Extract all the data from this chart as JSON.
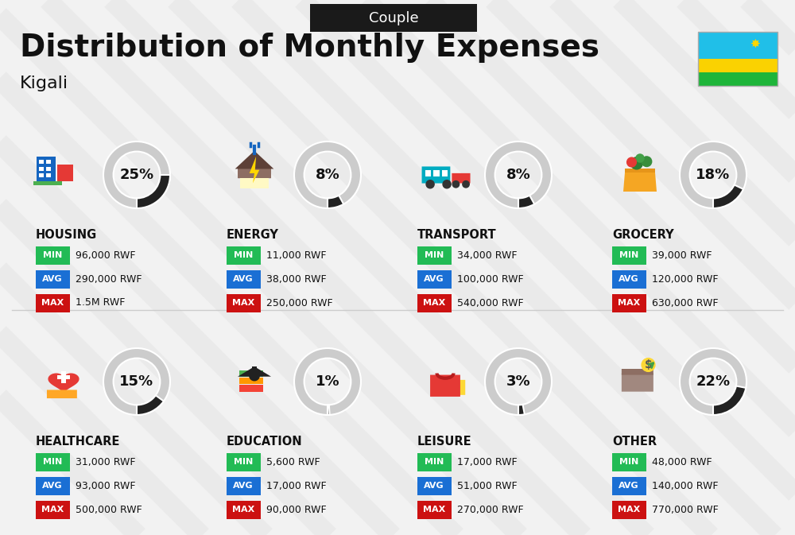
{
  "title": "Distribution of Monthly Expenses",
  "subtitle": "Couple",
  "city": "Kigali",
  "bg_color": "#f2f2f2",
  "header_bg": "#1a1a1a",
  "header_text_color": "#ffffff",
  "title_color": "#111111",
  "city_color": "#111111",
  "categories": [
    {
      "name": "HOUSING",
      "pct": 25,
      "min": "96,000 RWF",
      "avg": "290,000 RWF",
      "max": "1.5M RWF",
      "row": 0,
      "col": 0
    },
    {
      "name": "ENERGY",
      "pct": 8,
      "min": "11,000 RWF",
      "avg": "38,000 RWF",
      "max": "250,000 RWF",
      "row": 0,
      "col": 1
    },
    {
      "name": "TRANSPORT",
      "pct": 8,
      "min": "34,000 RWF",
      "avg": "100,000 RWF",
      "max": "540,000 RWF",
      "row": 0,
      "col": 2
    },
    {
      "name": "GROCERY",
      "pct": 18,
      "min": "39,000 RWF",
      "avg": "120,000 RWF",
      "max": "630,000 RWF",
      "row": 0,
      "col": 3
    },
    {
      "name": "HEALTHCARE",
      "pct": 15,
      "min": "31,000 RWF",
      "avg": "93,000 RWF",
      "max": "500,000 RWF",
      "row": 1,
      "col": 0
    },
    {
      "name": "EDUCATION",
      "pct": 1,
      "min": "5,600 RWF",
      "avg": "17,000 RWF",
      "max": "90,000 RWF",
      "row": 1,
      "col": 1
    },
    {
      "name": "LEISURE",
      "pct": 3,
      "min": "17,000 RWF",
      "avg": "51,000 RWF",
      "max": "270,000 RWF",
      "row": 1,
      "col": 2
    },
    {
      "name": "OTHER",
      "pct": 22,
      "min": "48,000 RWF",
      "avg": "140,000 RWF",
      "max": "770,000 RWF",
      "row": 1,
      "col": 3
    }
  ],
  "min_color": "#22bb55",
  "avg_color": "#1a6fd4",
  "max_color": "#cc1111",
  "label_text_color": "#ffffff",
  "value_text_color": "#111111",
  "donut_fg_color": "#222222",
  "donut_bg_color": "#cccccc",
  "flag_colors": [
    "#20bfe8",
    "#fad201",
    "#1eb53a"
  ],
  "stripe_color": "#e8e8e8",
  "icon_images": [
    "housing",
    "energy",
    "transport",
    "grocery",
    "healthcare",
    "education",
    "leisure",
    "other"
  ]
}
